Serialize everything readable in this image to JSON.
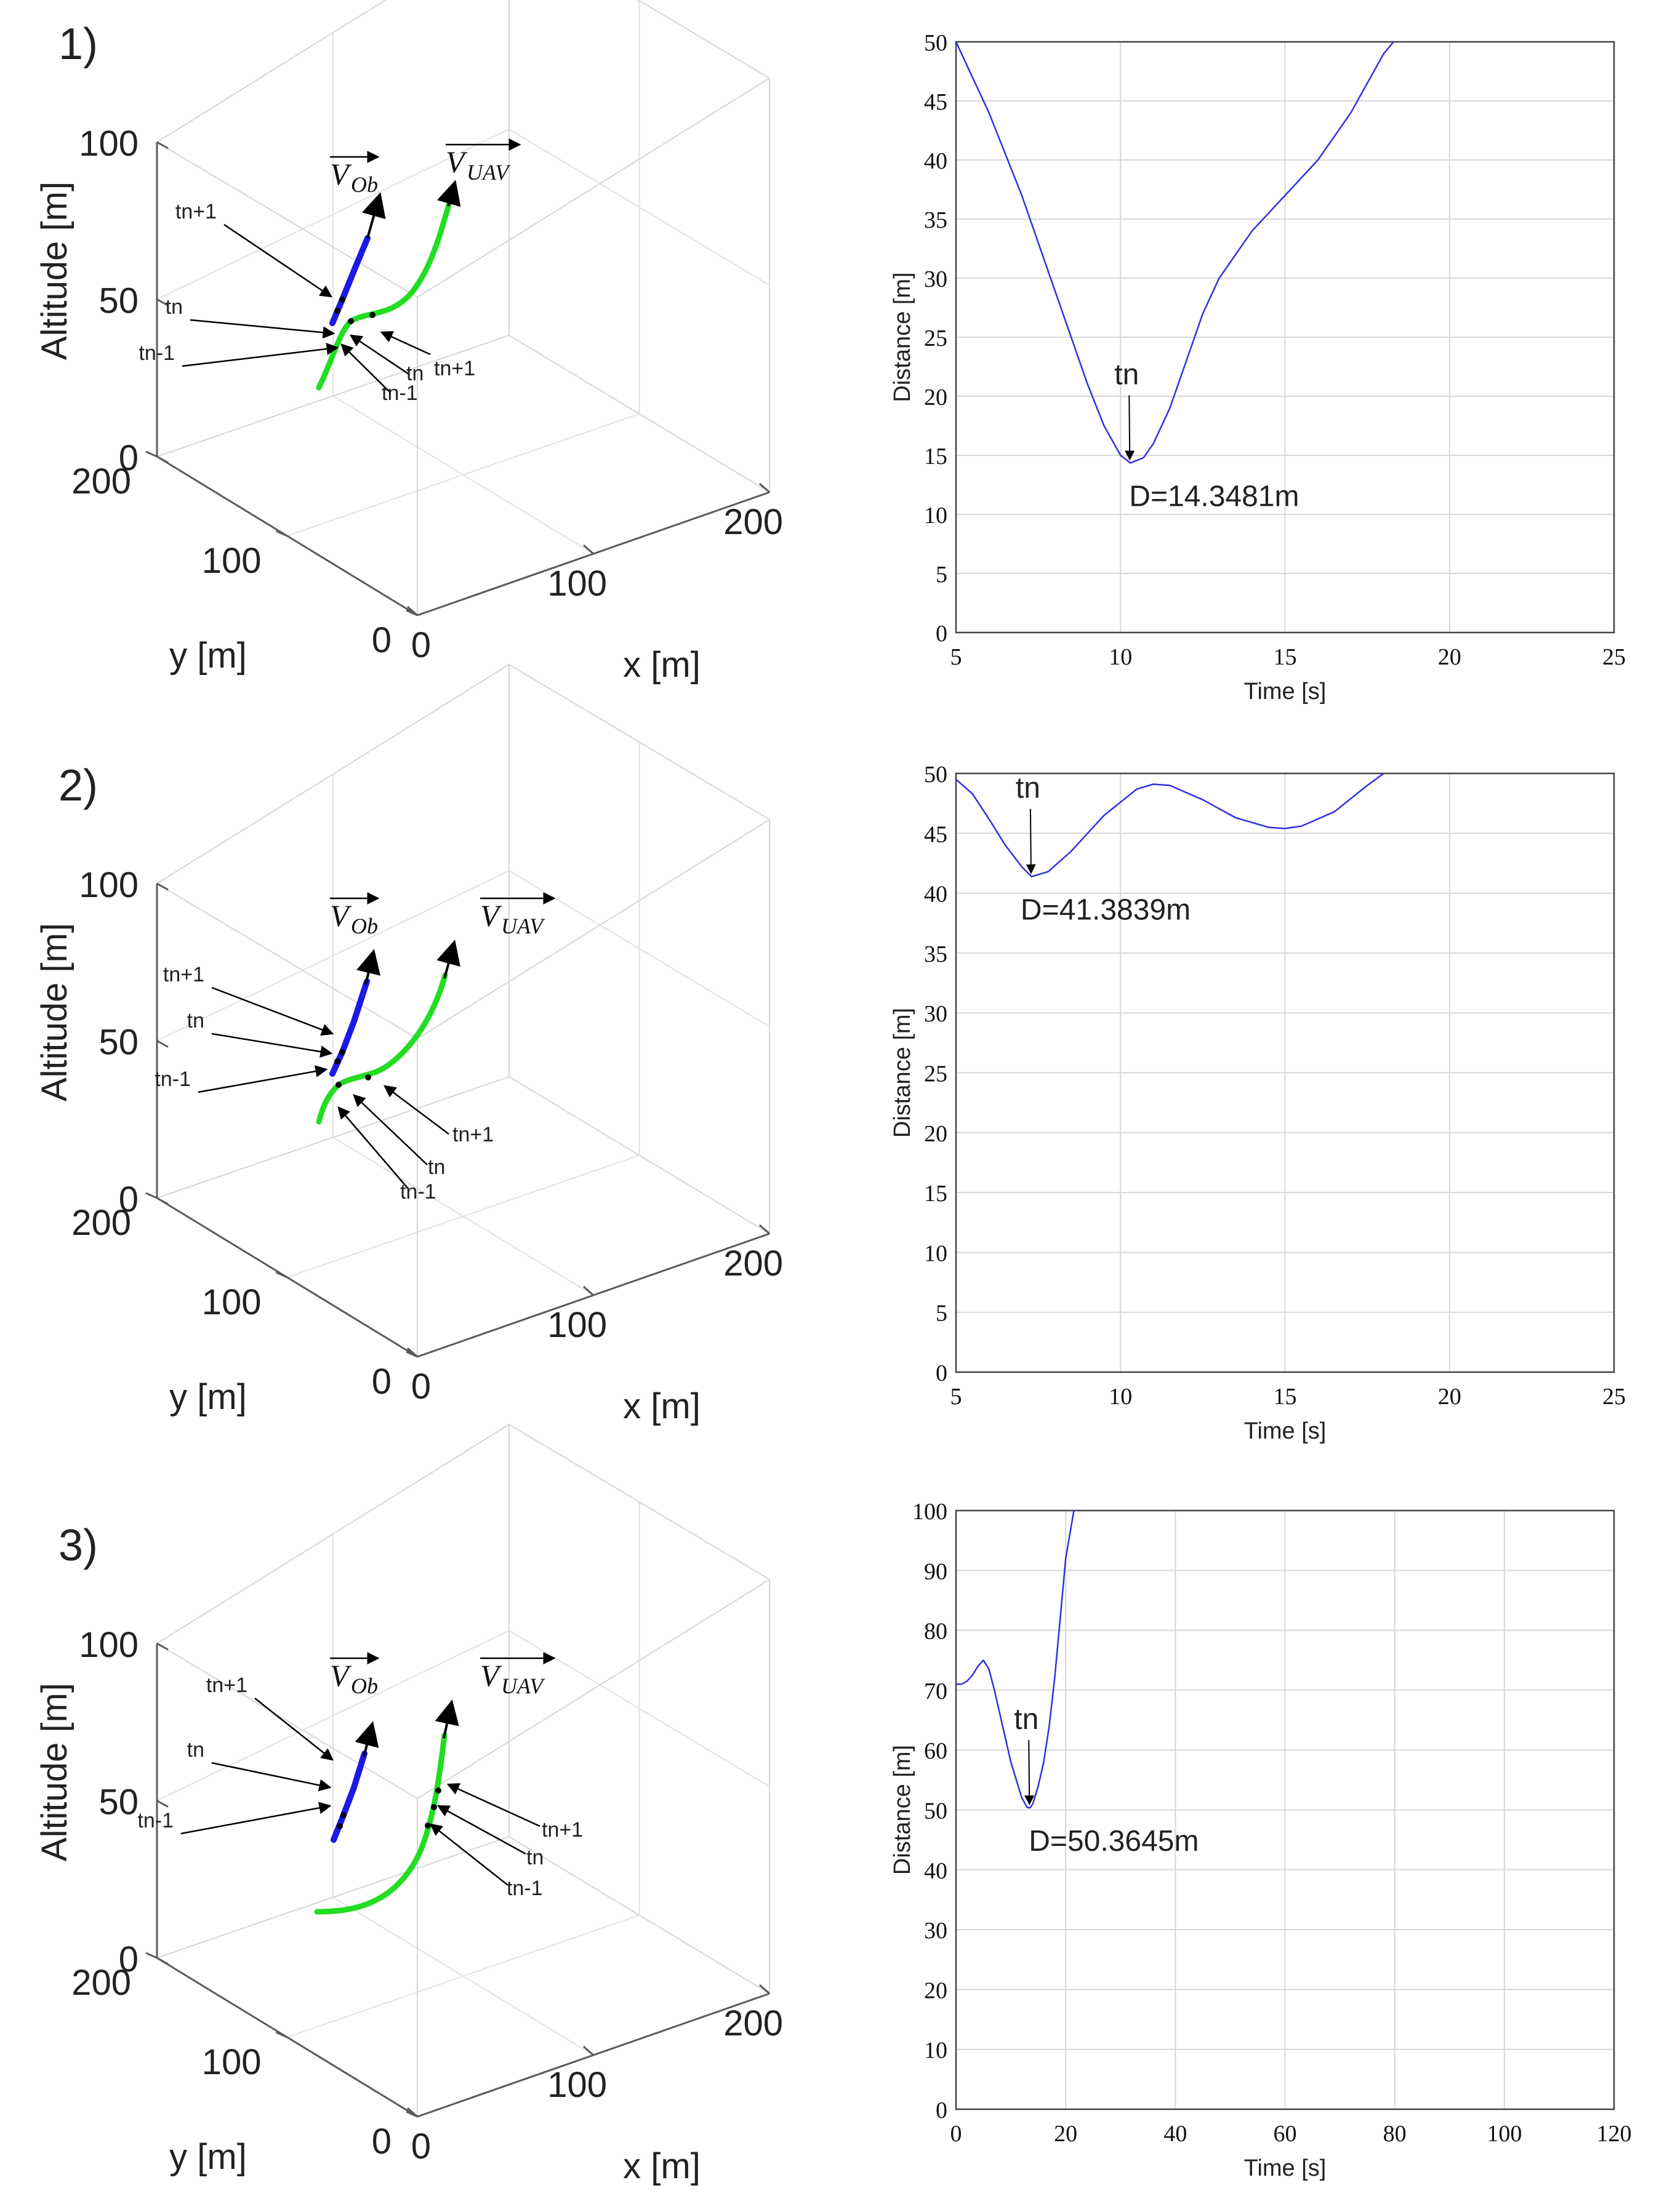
{
  "panels": [
    {
      "title": "1)",
      "plot3d": {
        "zlabel": "Altitude [m]",
        "ylabel": "y [m]",
        "xlabel": "x [m]",
        "zticks": [
          "0",
          "50",
          "100"
        ],
        "yticks": [
          "0",
          "100",
          "200"
        ],
        "xticks": [
          "0",
          "100",
          "200"
        ],
        "vec_ob": "V",
        "vec_ob_sub": "Ob",
        "vec_uav": "V",
        "vec_uav_sub": "UAV",
        "obstacle_points": [
          "tn+1",
          "tn",
          "tn-1"
        ],
        "uav_points": [
          "tn+1",
          "tn",
          "tn-1"
        ]
      },
      "chart_data": {
        "type": "line",
        "title": "",
        "xlabel": "Time [s]",
        "ylabel": "Distance [m]",
        "xlim": [
          5,
          25
        ],
        "ylim": [
          0,
          50
        ],
        "xticks": [
          5,
          10,
          15,
          20,
          25
        ],
        "yticks": [
          0,
          5,
          10,
          15,
          20,
          25,
          30,
          35,
          40,
          45,
          50
        ],
        "series": [
          {
            "name": "distance",
            "color": "#3030e0",
            "x": [
              5,
              6,
              7,
              8,
              9,
              9.5,
              10,
              10.3,
              10.7,
              11,
              11.5,
              12,
              12.5,
              13,
              14,
              15,
              16,
              17,
              18,
              18.3
            ],
            "y": [
              50,
              44,
              37,
              29,
              21,
              17.5,
              15,
              14.35,
              14.8,
              16,
              19,
              23,
              27,
              30,
              34,
              37,
              40,
              44,
              49,
              50
            ]
          }
        ],
        "annotation": {
          "label": "tn",
          "value_text": "D=14.3481m",
          "x": 10.3,
          "y": 14.35
        }
      }
    },
    {
      "title": "2)",
      "plot3d": {
        "zlabel": "Altitude [m]",
        "ylabel": "y [m]",
        "xlabel": "x [m]",
        "zticks": [
          "0",
          "50",
          "100"
        ],
        "yticks": [
          "0",
          "100",
          "200"
        ],
        "xticks": [
          "0",
          "100",
          "200"
        ],
        "vec_ob": "V",
        "vec_ob_sub": "Ob",
        "vec_uav": "V",
        "vec_uav_sub": "UAV",
        "obstacle_points": [
          "tn+1",
          "tn",
          "tn-1"
        ],
        "uav_points": [
          "tn+1",
          "tn",
          "tn-1"
        ]
      },
      "chart_data": {
        "type": "line",
        "title": "",
        "xlabel": "Time [s]",
        "ylabel": "Distance [m]",
        "xlim": [
          5,
          25
        ],
        "ylim": [
          0,
          50
        ],
        "xticks": [
          5,
          10,
          15,
          20,
          25
        ],
        "yticks": [
          0,
          5,
          10,
          15,
          20,
          25,
          30,
          35,
          40,
          45,
          50
        ],
        "series": [
          {
            "name": "distance",
            "color": "#3030e0",
            "x": [
              5,
              5.5,
              6,
              6.5,
              7,
              7.3,
              7.8,
              8.5,
              9.5,
              10.5,
              11,
              11.5,
              12.5,
              13.5,
              14.5,
              15,
              15.5,
              16.5,
              17.5,
              18
            ],
            "y": [
              49.5,
              48.3,
              46.2,
              44,
              42.2,
              41.38,
              41.8,
              43.5,
              46.5,
              48.7,
              49.1,
              49,
              47.8,
              46.3,
              45.5,
              45.4,
              45.6,
              46.8,
              49,
              50
            ]
          }
        ],
        "annotation": {
          "label": "tn",
          "value_text": "D=41.3839m",
          "x": 7.3,
          "y": 41.38
        }
      }
    },
    {
      "title": "3)",
      "plot3d": {
        "zlabel": "Altitude [m]",
        "ylabel": "y [m]",
        "xlabel": "x [m]",
        "zticks": [
          "0",
          "50",
          "100"
        ],
        "yticks": [
          "0",
          "100",
          "200"
        ],
        "xticks": [
          "0",
          "100",
          "200"
        ],
        "vec_ob": "V",
        "vec_ob_sub": "Ob",
        "vec_uav": "V",
        "vec_uav_sub": "UAV",
        "obstacle_points": [
          "tn+1",
          "tn",
          "tn-1"
        ],
        "uav_points": [
          "tn+1",
          "tn",
          "tn-1"
        ]
      },
      "chart_data": {
        "type": "line",
        "title": "",
        "xlabel": "Time [s]",
        "ylabel": "Distance [m]",
        "xlim": [
          0,
          120
        ],
        "ylim": [
          0,
          100
        ],
        "xticks": [
          0,
          20,
          40,
          60,
          80,
          100,
          120
        ],
        "yticks": [
          0,
          10,
          20,
          30,
          40,
          50,
          60,
          70,
          80,
          90,
          100
        ],
        "series": [
          {
            "name": "distance",
            "color": "#3030e0",
            "x": [
              0,
              1,
              2,
              3,
              4,
              5,
              6,
              7,
              8,
              9,
              10,
              11,
              12,
              13,
              13.5,
              14,
              15,
              16,
              17,
              18,
              19,
              20,
              21.5
            ],
            "y": [
              71,
              71,
              71.5,
              72.5,
              74,
              75,
              73.5,
              70,
              66,
              62,
              58,
              55,
              52,
              50.4,
              50.36,
              51,
              54,
              58,
              64,
              72,
              82,
              92,
              100
            ]
          }
        ],
        "annotation": {
          "label": "tn",
          "value_text": "D=50.3645m",
          "x": 13.5,
          "y": 50.36
        }
      }
    }
  ]
}
